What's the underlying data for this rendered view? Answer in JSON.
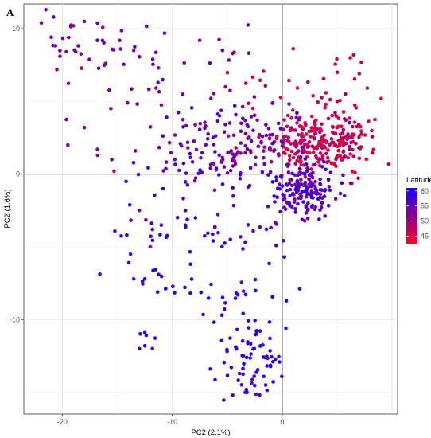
{
  "panel_label": "A",
  "chart_data": {
    "type": "scatter",
    "title": "",
    "xlabel": "PC2 (2.1%)",
    "ylabel": "PC2 (1.6%)",
    "xlim": [
      -23.5,
      10.5
    ],
    "ylim": [
      -16.5,
      11.7
    ],
    "x_ticks": [
      -20,
      -10,
      0
    ],
    "y_ticks": [
      -10,
      0,
      10
    ],
    "grid": true,
    "reference_lines": {
      "x": 0,
      "y": 0
    },
    "color_by": "Latitude",
    "color_scale": {
      "min_value": 42.5,
      "max_value": 61,
      "low_color": "#ff0022",
      "high_color": "#1a00ff"
    },
    "legend": {
      "title": "Latitude",
      "ticks": [
        60,
        55,
        50,
        45
      ],
      "placement": "right"
    },
    "clusters": [
      {
        "cx": 3.5,
        "cy": 2.2,
        "sx": 2.4,
        "sy": 1.0,
        "n": 260,
        "lat": [
          44,
          50
        ]
      },
      {
        "cx": 2.0,
        "cy": -1.0,
        "sx": 1.4,
        "sy": 0.9,
        "n": 160,
        "lat": [
          52,
          60
        ]
      },
      {
        "cx": -4.0,
        "cy": 2.0,
        "sx": 3.5,
        "sy": 1.5,
        "n": 150,
        "lat": [
          50,
          58
        ]
      },
      {
        "cx": 3.0,
        "cy": 5.5,
        "sx": 3.5,
        "sy": 1.8,
        "n": 40,
        "lat": [
          45,
          50
        ]
      },
      {
        "cx": -2.5,
        "cy": -13.0,
        "sx": 1.1,
        "sy": 1.3,
        "n": 60,
        "lat": [
          56,
          61
        ]
      },
      {
        "cx": -5.0,
        "cy": -8.5,
        "sx": 3.2,
        "sy": 3.0,
        "n": 55,
        "lat": [
          56,
          61
        ]
      },
      {
        "cx": -12.0,
        "cy": -6.5,
        "sx": 2.5,
        "sy": 3.5,
        "n": 22,
        "lat": [
          57,
          61
        ]
      },
      {
        "cx": -12.5,
        "cy": 6.5,
        "sx": 4.5,
        "sy": 2.5,
        "n": 45,
        "lat": [
          52,
          56
        ]
      },
      {
        "cx": -18.0,
        "cy": 9.0,
        "sx": 2.2,
        "sy": 1.3,
        "n": 25,
        "lat": [
          51,
          55
        ]
      },
      {
        "cx": -6.0,
        "cy": -2.0,
        "sx": 4.0,
        "sy": 2.0,
        "n": 45,
        "lat": [
          54,
          60
        ]
      }
    ],
    "points": [
      {
        "x": -21.5,
        "y": 11.3,
        "lat": 53
      },
      {
        "x": -20.8,
        "y": 10.8,
        "lat": 54
      },
      {
        "x": -21.9,
        "y": 10.4,
        "lat": 52
      },
      {
        "x": -19.0,
        "y": 10.2,
        "lat": 53
      },
      {
        "x": -18.0,
        "y": 10.5,
        "lat": 54
      },
      {
        "x": -20.5,
        "y": 7.2,
        "lat": 53
      },
      {
        "x": -16.8,
        "y": 9.2,
        "lat": 59
      },
      {
        "x": -13.5,
        "y": 8.5,
        "lat": 51
      },
      {
        "x": -7.5,
        "y": 9.2,
        "lat": 52
      },
      {
        "x": -4.5,
        "y": 8.3,
        "lat": 50
      },
      {
        "x": 6.2,
        "y": 8.0,
        "lat": 47
      },
      {
        "x": 6.5,
        "y": 8.2,
        "lat": 47
      },
      {
        "x": 7.2,
        "y": 7.7,
        "lat": 47
      },
      {
        "x": 9.0,
        "y": 5.2,
        "lat": 45
      },
      {
        "x": 5.0,
        "y": 7.0,
        "lat": 47
      },
      {
        "x": -19.5,
        "y": 2.0,
        "lat": 53
      },
      {
        "x": -18.0,
        "y": 3.2,
        "lat": 53
      },
      {
        "x": -16.8,
        "y": 1.7,
        "lat": 53
      },
      {
        "x": -15.5,
        "y": 1.0,
        "lat": 53
      },
      {
        "x": -15.3,
        "y": 0.2,
        "lat": 46
      },
      {
        "x": -14.2,
        "y": -0.5,
        "lat": 57
      },
      {
        "x": -13.0,
        "y": -2.5,
        "lat": 55
      },
      {
        "x": -11.8,
        "y": -3.8,
        "lat": 56
      },
      {
        "x": -11.0,
        "y": -3.5,
        "lat": 56
      },
      {
        "x": -12.0,
        "y": -5.0,
        "lat": 47
      },
      {
        "x": -13.8,
        "y": -5.5,
        "lat": 56
      },
      {
        "x": -12.5,
        "y": -7.2,
        "lat": 58
      },
      {
        "x": -13.5,
        "y": -7.2,
        "lat": 58
      },
      {
        "x": -13.0,
        "y": -12.0,
        "lat": 60
      },
      {
        "x": -12.5,
        "y": -11.8,
        "lat": 60
      },
      {
        "x": -11.8,
        "y": -12.0,
        "lat": 60
      },
      {
        "x": -12.5,
        "y": -10.9,
        "lat": 59
      },
      {
        "x": -4.5,
        "y": -15.2,
        "lat": 57
      },
      {
        "x": -3.2,
        "y": -15.0,
        "lat": 57
      },
      {
        "x": -1.5,
        "y": -14.5,
        "lat": 59
      }
    ]
  }
}
